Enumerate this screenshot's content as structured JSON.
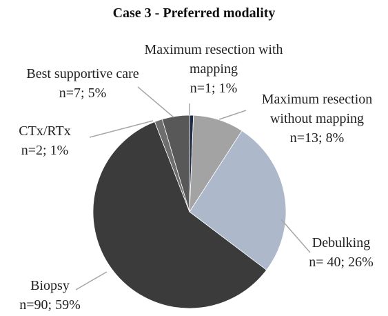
{
  "chart_data": {
    "type": "pie",
    "title": "Case 3 - Preferred modality",
    "categories": [
      "Maximum resection with mapping",
      "Maximum resection without mapping",
      "Debulking",
      "Biopsy",
      "CTx/RTx",
      "Best supportive care"
    ],
    "values": [
      1,
      13,
      40,
      90,
      2,
      7
    ],
    "value_labels": [
      "n=1; 1%",
      "n=13; 8%",
      "n= 40; 26%",
      "n=90; 59%",
      "n=2; 1%",
      "n=7; 5%"
    ],
    "colors": [
      "#1f2a44",
      "#a3a3a3",
      "#adb9ca",
      "#3b3b3b",
      "#6e6e6e",
      "#585858"
    ]
  }
}
